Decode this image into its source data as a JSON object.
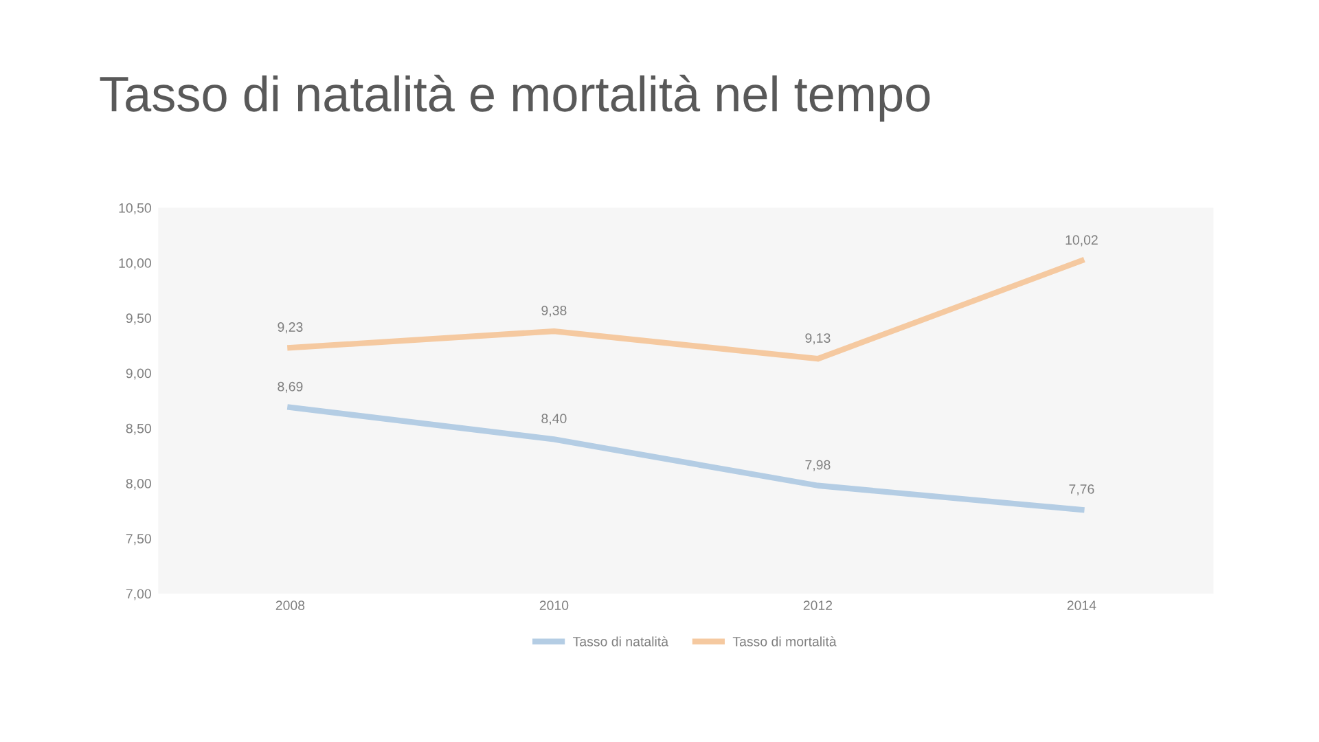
{
  "chart_data": {
    "type": "line",
    "title": "Tasso di natalità e mortalità nel tempo",
    "categories": [
      "2008",
      "2010",
      "2012",
      "2014"
    ],
    "series": [
      {
        "name": "Tasso di natalità",
        "color": "#b4cde4",
        "values": [
          8.69,
          8.4,
          7.98,
          7.76
        ],
        "value_labels": [
          "8,69",
          "8,40",
          "7,98",
          "7,76"
        ]
      },
      {
        "name": "Tasso di mortalità",
        "color": "#f5c9a0",
        "values": [
          9.23,
          9.38,
          9.13,
          10.02
        ],
        "value_labels": [
          "9,23",
          "9,38",
          "9,13",
          "10,02"
        ]
      }
    ],
    "ylim": [
      7.0,
      10.5
    ],
    "yticks": [
      {
        "value": 7.0,
        "label": "7,00"
      },
      {
        "value": 7.5,
        "label": "7,50"
      },
      {
        "value": 8.0,
        "label": "8,00"
      },
      {
        "value": 8.5,
        "label": "8,50"
      },
      {
        "value": 9.0,
        "label": "9,00"
      },
      {
        "value": 9.5,
        "label": "9,50"
      },
      {
        "value": 10.0,
        "label": "10,00"
      },
      {
        "value": 10.5,
        "label": "10,50"
      }
    ],
    "grid": false,
    "legend": "bottom",
    "marker": "none",
    "line_style": "solid"
  }
}
